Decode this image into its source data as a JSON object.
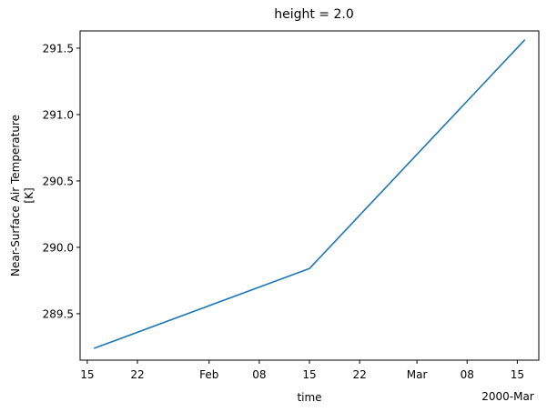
{
  "chart_data": {
    "type": "line",
    "title": "height = 2.0",
    "xlabel": "time",
    "ylabel_line1": "Near-Surface Air Temperature",
    "ylabel_line2": "[K]",
    "x_offset_label": "2000-Mar",
    "xlim": [
      "2000-01-14",
      "2000-03-18"
    ],
    "ylim": [
      289.15,
      291.63
    ],
    "grid": false,
    "x_ticks": [
      {
        "date": "2000-01-15",
        "label": "15"
      },
      {
        "date": "2000-01-22",
        "label": "22"
      },
      {
        "date": "2000-02-01",
        "label": "Feb"
      },
      {
        "date": "2000-02-08",
        "label": "08"
      },
      {
        "date": "2000-02-15",
        "label": "15"
      },
      {
        "date": "2000-02-22",
        "label": "22"
      },
      {
        "date": "2000-03-01",
        "label": "Mar"
      },
      {
        "date": "2000-03-08",
        "label": "08"
      },
      {
        "date": "2000-03-15",
        "label": "15"
      }
    ],
    "y_ticks": [
      {
        "value": 289.5,
        "label": "289.5"
      },
      {
        "value": 290.0,
        "label": "290.0"
      },
      {
        "value": 290.5,
        "label": "290.5"
      },
      {
        "value": 291.0,
        "label": "291.0"
      },
      {
        "value": 291.5,
        "label": "291.5"
      }
    ],
    "series": [
      {
        "color": "#1f77b4",
        "x": [
          "2000-01-16",
          "2000-02-15",
          "2000-03-16"
        ],
        "y": [
          289.24,
          289.84,
          291.56
        ]
      }
    ]
  }
}
